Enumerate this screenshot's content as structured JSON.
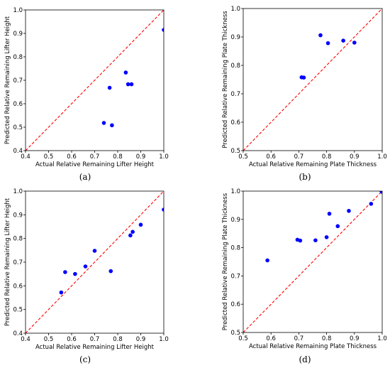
{
  "figure": {
    "captions": [
      "(a)",
      "(b)",
      "(c)",
      "(d)"
    ]
  },
  "chart_data": [
    {
      "type": "scatter",
      "xlabel": "Actual Relative Remaining Lifter Height",
      "ylabel": "Predicted Relative Remaining Lifter Height",
      "xlim": [
        0.4,
        1.0
      ],
      "ylim": [
        0.4,
        1.0
      ],
      "xticks": [
        "0.4",
        "0.5",
        "0.6",
        "0.7",
        "0.8",
        "0.9",
        "1.0"
      ],
      "yticks": [
        "0.4",
        "0.5",
        "0.6",
        "0.7",
        "0.8",
        "0.9",
        "1.0"
      ],
      "grid": false,
      "reference_line": "y = x",
      "point_color": "#0000ff",
      "line_color": "#ff0000",
      "x": [
        0.74,
        0.765,
        0.775,
        0.835,
        0.845,
        0.86,
        1.0
      ],
      "y": [
        0.518,
        0.668,
        0.508,
        0.733,
        0.683,
        0.683,
        0.915
      ]
    },
    {
      "type": "scatter",
      "xlabel": "Actual Relative Remaining Plate Thickness",
      "ylabel": "Predicted Relative Remaining Plate Thickness",
      "xlim": [
        0.5,
        1.0
      ],
      "ylim": [
        0.5,
        1.0
      ],
      "xticks": [
        "0.5",
        "0.6",
        "0.7",
        "0.8",
        "0.9",
        "1.0"
      ],
      "yticks": [
        "0.5",
        "0.6",
        "0.7",
        "0.8",
        "0.9",
        "1.0"
      ],
      "grid": false,
      "reference_line": "y = x",
      "point_color": "#0000ff",
      "line_color": "#ff0000",
      "x": [
        0.71,
        0.718,
        0.778,
        0.805,
        0.86,
        0.9,
        1.0
      ],
      "y": [
        0.758,
        0.757,
        0.906,
        0.878,
        0.887,
        0.88,
        1.008
      ]
    },
    {
      "type": "scatter",
      "xlabel": "Actual Relative Remaining Lifter Height",
      "ylabel": "Predicted Relative Remaining Lifter Height",
      "xlim": [
        0.4,
        1.0
      ],
      "ylim": [
        0.4,
        1.0
      ],
      "xticks": [
        "0.4",
        "0.5",
        "0.6",
        "0.7",
        "0.8",
        "0.9",
        "1.0"
      ],
      "yticks": [
        "0.4",
        "0.5",
        "0.6",
        "0.7",
        "0.8",
        "0.9",
        "1.0"
      ],
      "grid": false,
      "reference_line": "y = x",
      "point_color": "#0000ff",
      "line_color": "#ff0000",
      "x": [
        0.555,
        0.572,
        0.615,
        0.66,
        0.7,
        0.77,
        0.855,
        0.865,
        0.9,
        1.0
      ],
      "y": [
        0.572,
        0.658,
        0.65,
        0.682,
        0.748,
        0.662,
        0.813,
        0.828,
        0.858,
        0.922
      ]
    },
    {
      "type": "scatter",
      "xlabel": "Actual Relative Remaining Plate Thickness",
      "ylabel": "Predicted Relative Remaining Plate Thickness",
      "xlim": [
        0.5,
        1.0
      ],
      "ylim": [
        0.5,
        1.0
      ],
      "xticks": [
        "0.5",
        "0.6",
        "0.7",
        "0.8",
        "0.9",
        "1.0"
      ],
      "yticks": [
        "0.5",
        "0.6",
        "0.7",
        "0.8",
        "0.9",
        "1.0"
      ],
      "grid": false,
      "reference_line": "y = x",
      "point_color": "#0000ff",
      "line_color": "#ff0000",
      "x": [
        0.587,
        0.695,
        0.705,
        0.76,
        0.8,
        0.81,
        0.84,
        0.88,
        0.96,
        0.998
      ],
      "y": [
        0.755,
        0.828,
        0.825,
        0.826,
        0.837,
        0.92,
        0.876,
        0.93,
        0.955,
        0.998
      ]
    }
  ]
}
